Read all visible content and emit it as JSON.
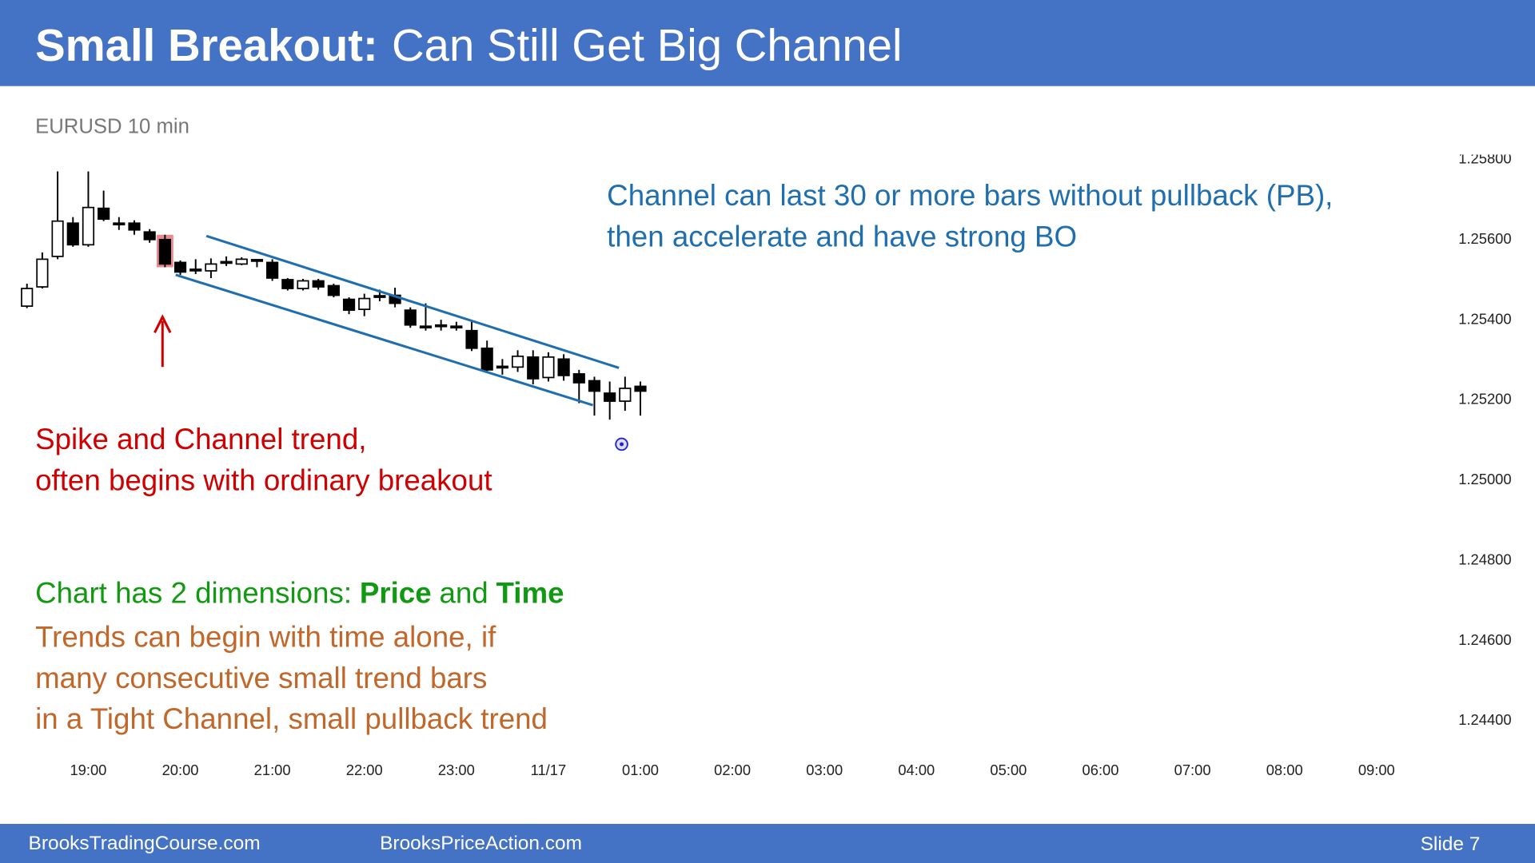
{
  "header": {
    "title_bold": "Small Breakout:",
    "title_rest": "Can Still Get Big Channel"
  },
  "footer": {
    "left": "BrooksTradingCourse.com",
    "middle": "BrooksPriceAction.com",
    "right": "Slide 7"
  },
  "chart_data": {
    "type": "candlestick",
    "subtitle": "EURUSD 10 min",
    "x": [
      20,
      30,
      40,
      50,
      60,
      70,
      80,
      90,
      100,
      110,
      120,
      130,
      140,
      150,
      160,
      170,
      180,
      190,
      200,
      210,
      220,
      230,
      240,
      250,
      260,
      270,
      280,
      290,
      300,
      310,
      320,
      330,
      340,
      350,
      360,
      370,
      380,
      390,
      400,
      410,
      420
    ],
    "open": [
      1.25432,
      1.2548,
      1.25556,
      1.25639,
      1.25585,
      1.25676,
      1.25639,
      1.25639,
      1.25617,
      1.25598,
      1.25541,
      1.25524,
      1.2552,
      1.25541,
      1.25537,
      1.25546,
      1.25541,
      1.25498,
      1.25476,
      1.25495,
      1.25483,
      1.25449,
      1.25424,
      1.25456,
      1.25459,
      1.25422,
      1.2538,
      1.25383,
      1.2538,
      1.25371,
      1.25327,
      1.2528,
      1.2528,
      1.25305,
      1.25254,
      1.253,
      1.25263,
      1.25246,
      1.25215,
      1.25195,
      1.25232
    ],
    "high": [
      1.25488,
      1.25566,
      1.25768,
      1.25654,
      1.25768,
      1.2572,
      1.25654,
      1.25646,
      1.25624,
      1.2561,
      1.25546,
      1.25549,
      1.25551,
      1.25556,
      1.25554,
      1.25549,
      1.25549,
      1.25502,
      1.255,
      1.255,
      1.25488,
      1.25454,
      1.25463,
      1.25473,
      1.25478,
      1.25429,
      1.25439,
      1.25398,
      1.25393,
      1.25395,
      1.25346,
      1.253,
      1.25322,
      1.25322,
      1.25317,
      1.25312,
      1.25273,
      1.25256,
      1.25244,
      1.25256,
      1.25244
    ],
    "low": [
      1.25427,
      1.25476,
      1.25549,
      1.2558,
      1.2558,
      1.25644,
      1.25622,
      1.2561,
      1.2559,
      1.25529,
      1.2551,
      1.25512,
      1.25502,
      1.25532,
      1.25534,
      1.25529,
      1.25495,
      1.25471,
      1.25471,
      1.25473,
      1.25454,
      1.25412,
      1.25407,
      1.25444,
      1.25429,
      1.25378,
      1.25371,
      1.25371,
      1.25371,
      1.2532,
      1.25266,
      1.25261,
      1.25268,
      1.25237,
      1.25244,
      1.25246,
      1.2519,
      1.25159,
      1.25149,
      1.25171,
      1.25159
    ],
    "close": [
      1.25476,
      1.25549,
      1.25644,
      1.25585,
      1.25678,
      1.25649,
      1.25637,
      1.25622,
      1.25598,
      1.25537,
      1.25517,
      1.25522,
      1.25537,
      1.25541,
      1.25549,
      1.25546,
      1.25502,
      1.25476,
      1.25495,
      1.2548,
      1.25459,
      1.25422,
      1.25451,
      1.25456,
      1.25439,
      1.25385,
      1.2538,
      1.25383,
      1.2538,
      1.25327,
      1.25273,
      1.2528,
      1.25307,
      1.25251,
      1.25305,
      1.25259,
      1.25241,
      1.2522,
      1.25195,
      1.25227,
      1.2522
    ],
    "up_color": "#ffffff",
    "down_color": "#000000",
    "highlight": {
      "index": 9,
      "color": "#e8747c"
    },
    "channel_lines": [
      {
        "x": [
          137,
          406
        ],
        "y": [
          1.25607,
          1.25278
        ],
        "color": "#1f6fb0"
      },
      {
        "x": [
          117,
          389
        ],
        "y": [
          1.2551,
          1.25185
        ],
        "color": "#1f6fb0"
      }
    ],
    "xlim": [
      12,
      928
    ],
    "ylim": [
      1.24341,
      1.25805
    ],
    "xticks": [
      {
        "value": 60,
        "label": "19:00"
      },
      {
        "value": 120,
        "label": "20:00"
      },
      {
        "value": 180,
        "label": "21:00"
      },
      {
        "value": 240,
        "label": "22:00"
      },
      {
        "value": 300,
        "label": "23:00"
      },
      {
        "value": 360,
        "label": "11/17"
      },
      {
        "value": 420,
        "label": "01:00"
      },
      {
        "value": 480,
        "label": "02:00"
      },
      {
        "value": 540,
        "label": "03:00"
      },
      {
        "value": 600,
        "label": "04:00"
      },
      {
        "value": 660,
        "label": "05:00"
      },
      {
        "value": 720,
        "label": "06:00"
      },
      {
        "value": 780,
        "label": "07:00"
      },
      {
        "value": 840,
        "label": "08:00"
      },
      {
        "value": 900,
        "label": "09:00"
      }
    ],
    "yticks": [
      {
        "value": 1.258,
        "label": "1.25800"
      },
      {
        "value": 1.256,
        "label": "1.25600"
      },
      {
        "value": 1.254,
        "label": "1.25400"
      },
      {
        "value": 1.252,
        "label": "1.25200"
      },
      {
        "value": 1.25,
        "label": "1.25000"
      },
      {
        "value": 1.248,
        "label": "1.24800"
      },
      {
        "value": 1.246,
        "label": "1.24600"
      },
      {
        "value": 1.244,
        "label": "1.24400"
      }
    ],
    "annotations": [
      {
        "color": "#1f6fb0",
        "lines": [
          [
            {
              "text": "Channel can last 30 or more bars without pullback (PB),",
              "bold": false
            }
          ],
          [
            {
              "text": "then accelerate and have strong BO",
              "bold": false
            }
          ]
        ]
      },
      {
        "color": "#d00000",
        "lines": [
          [
            {
              "text": "Spike and Channel trend,",
              "bold": false
            }
          ],
          [
            {
              "text": "often begins with ordinary breakout",
              "bold": false
            }
          ]
        ]
      },
      {
        "color": "#119911",
        "lines": [
          [
            {
              "text": "Chart has 2 dimensions:",
              "bold": false
            },
            {
              "text": "Price",
              "bold": true
            },
            {
              "text": "and",
              "bold": false
            },
            {
              "text": "Time",
              "bold": true
            }
          ]
        ]
      },
      {
        "color": "#c2672a",
        "lines": [
          [
            {
              "text": "Trends can begin with time alone, if",
              "bold": false
            }
          ],
          [
            {
              "text": "many consecutive small trend bars",
              "bold": false
            }
          ],
          [
            {
              "text": "in a Tight Channel, small pullback trend",
              "bold": false
            }
          ]
        ]
      }
    ]
  }
}
